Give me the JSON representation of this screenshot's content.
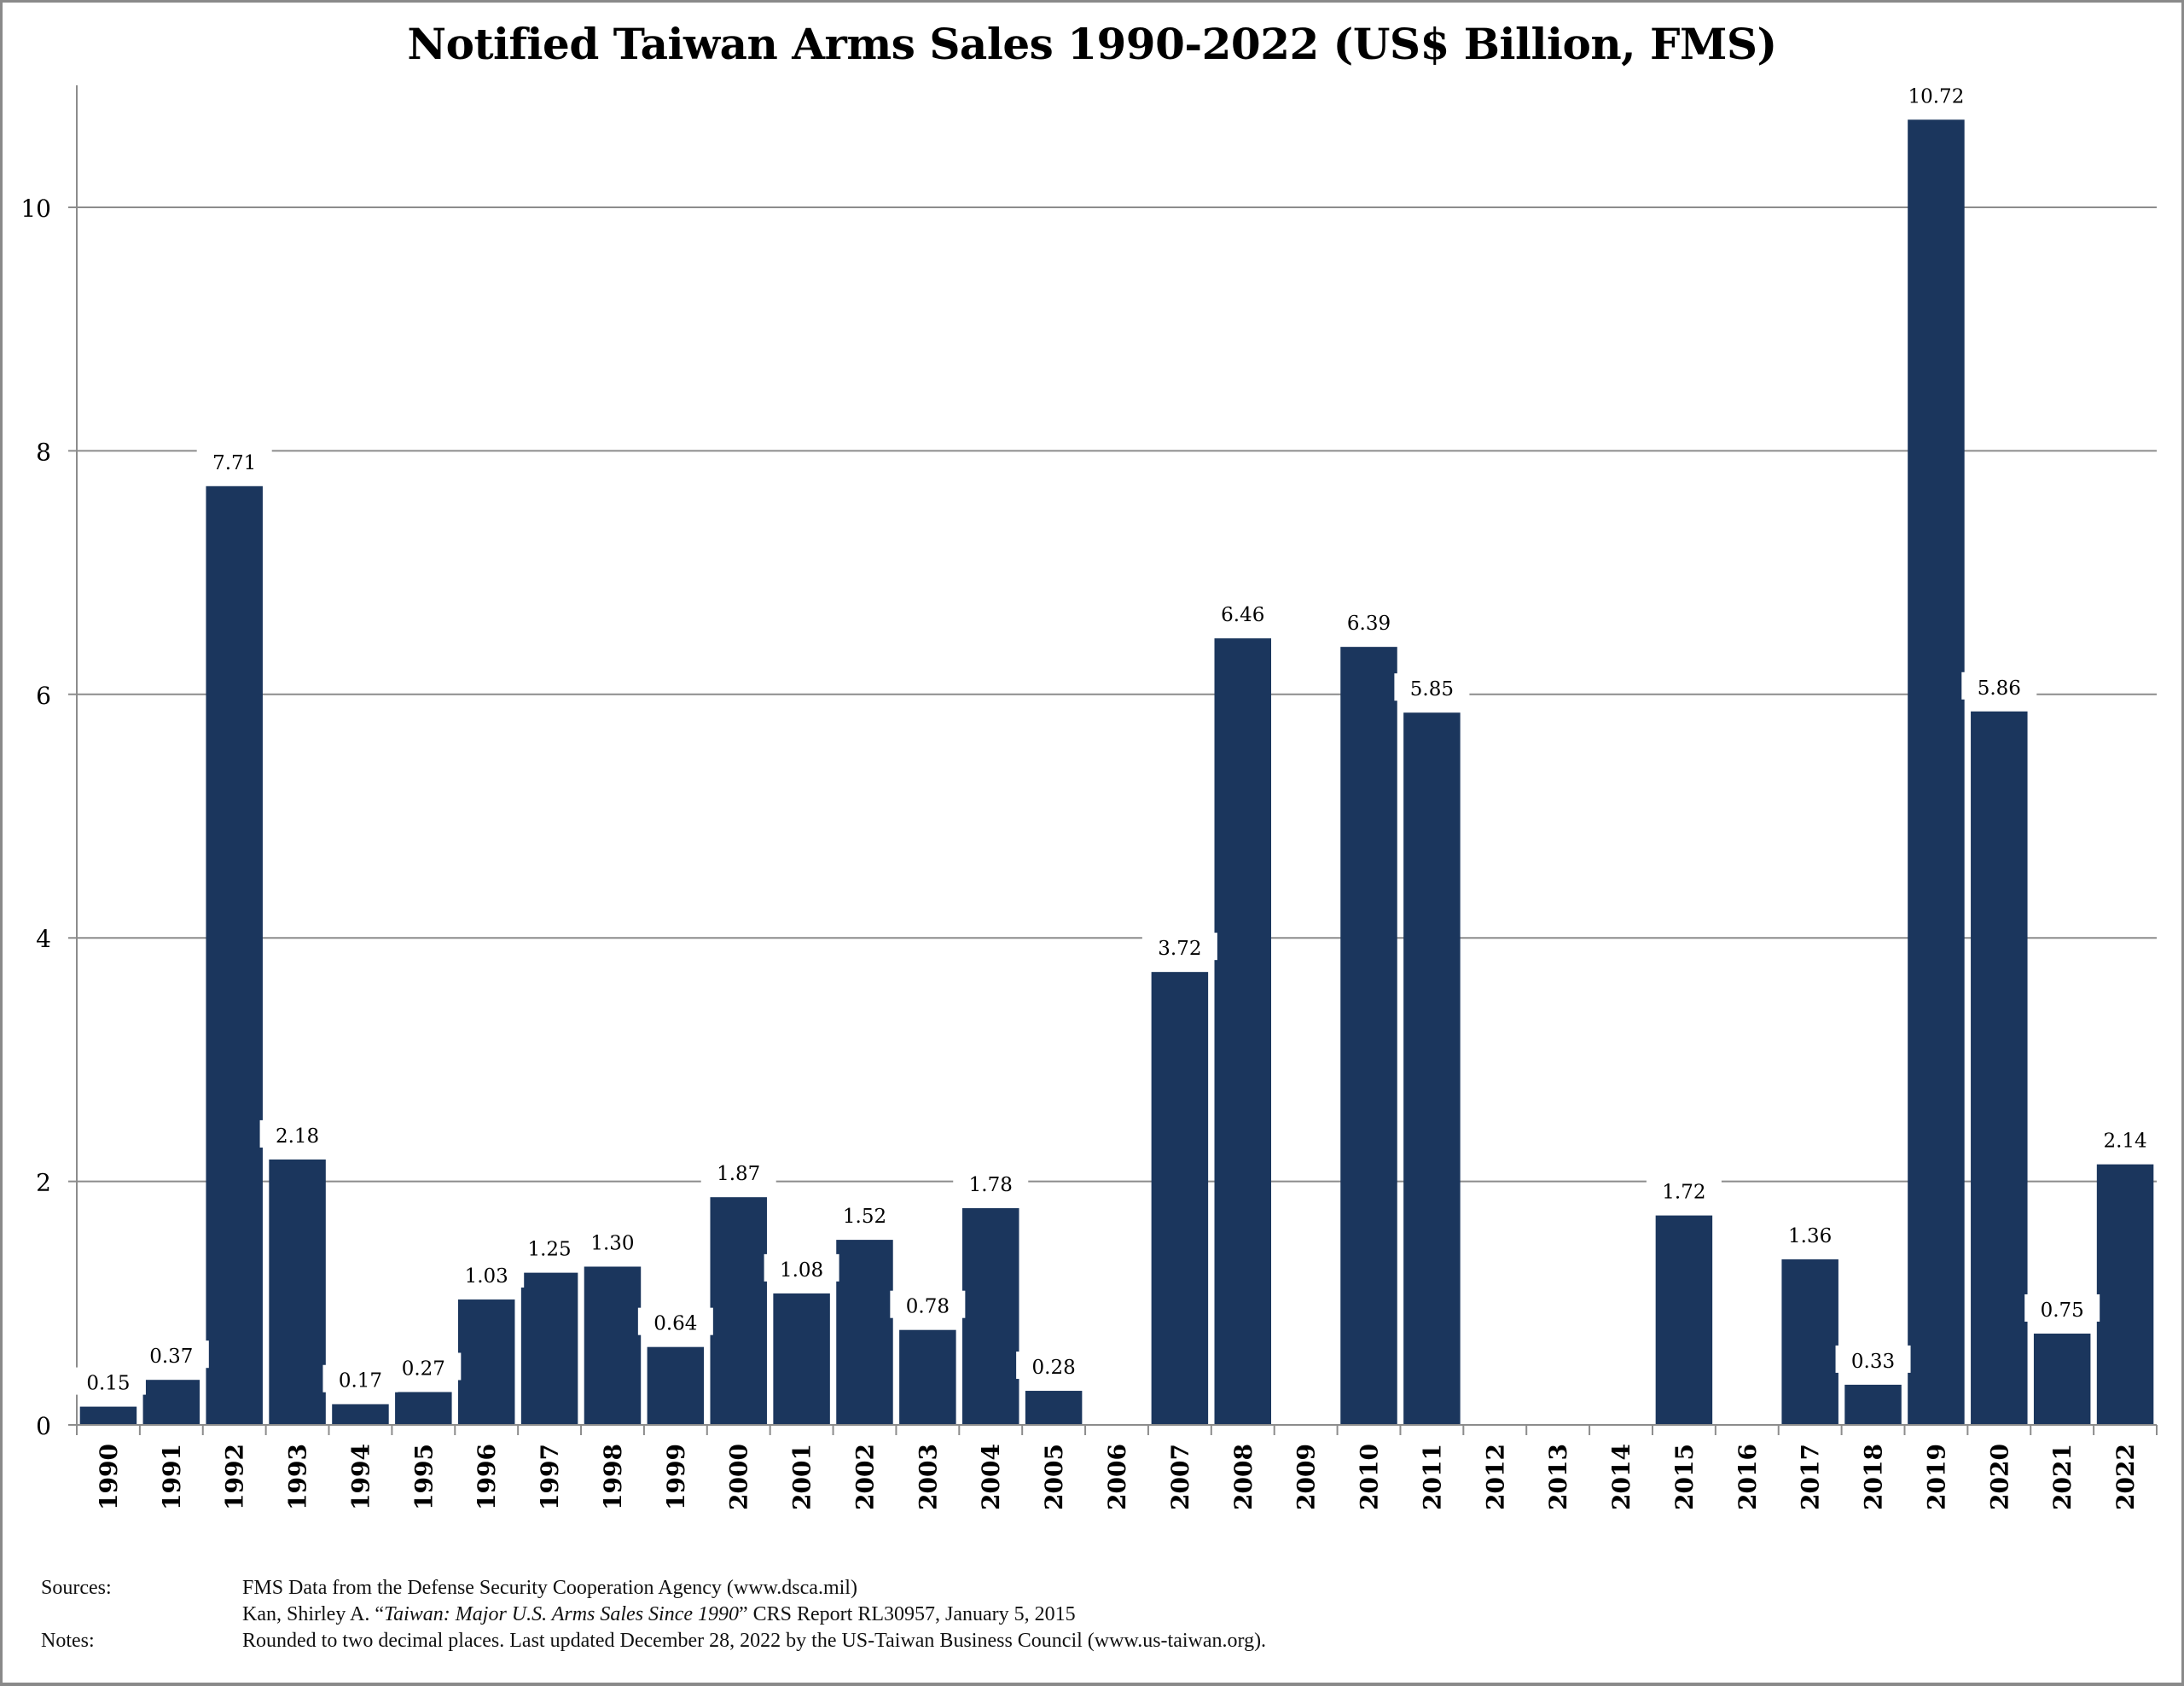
{
  "chart_data": {
    "type": "bar",
    "title": "Notified Taiwan Arms Sales 1990-2022 (US$ Billion, FMS)",
    "xlabel": "",
    "ylabel": "",
    "ylim": [
      0,
      11
    ],
    "yticks": [
      0,
      2,
      4,
      6,
      8,
      10
    ],
    "ytick_labels": [
      "0",
      "2",
      "4",
      "6",
      "8",
      "10"
    ],
    "grid": true,
    "legend": "none",
    "bar_color": "#1b365d",
    "categories": [
      "1990",
      "1991",
      "1992",
      "1993",
      "1994",
      "1995",
      "1996",
      "1997",
      "1998",
      "1999",
      "2000",
      "2001",
      "2002",
      "2003",
      "2004",
      "2005",
      "2006",
      "2007",
      "2008",
      "2009",
      "2010",
      "2011",
      "2012",
      "2013",
      "2014",
      "2015",
      "2016",
      "2017",
      "2018",
      "2019",
      "2020",
      "2021",
      "2022"
    ],
    "values": [
      0.15,
      0.37,
      7.71,
      2.18,
      0.17,
      0.27,
      1.03,
      1.25,
      1.3,
      0.64,
      1.87,
      1.08,
      1.52,
      0.78,
      1.78,
      0.28,
      null,
      3.72,
      6.46,
      null,
      6.39,
      5.85,
      null,
      null,
      null,
      1.72,
      null,
      1.36,
      0.33,
      10.72,
      5.86,
      0.75,
      2.14
    ],
    "data_labels": [
      "0.15",
      "0.37",
      "7.71",
      "2.18",
      "0.17",
      "0.27",
      "1.03",
      "1.25",
      "1.30",
      "0.64",
      "1.87",
      "1.08",
      "1.52",
      "0.78",
      "1.78",
      "0.28",
      "",
      "3.72",
      "6.46",
      "",
      "6.39",
      "5.85",
      "",
      "",
      "",
      "1.72",
      "",
      "1.36",
      "0.33",
      "10.72",
      "5.86",
      "0.75",
      "2.14"
    ]
  },
  "footer": {
    "sources_label": "Sources:",
    "source_1": "FMS Data from the Defense Security Cooperation Agency (www.dsca.mil)",
    "source_2_pre": "Kan, Shirley A. “",
    "source_2_italic": "Taiwan: Major U.S. Arms Sales Since 1990",
    "source_2_post": "” CRS Report RL30957, January 5, 2015",
    "notes_label": "Notes:",
    "notes_text": "Rounded to two decimal places. Last updated December 28, 2022 by the US-Taiwan Business Council (www.us-taiwan.org)."
  }
}
